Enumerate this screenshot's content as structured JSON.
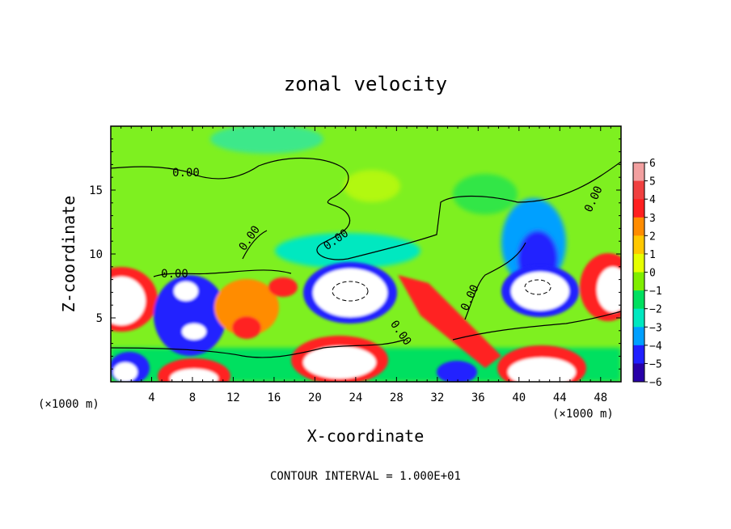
{
  "chart_data": {
    "type": "heatmap",
    "title": "zonal velocity",
    "xlabel": "X-coordinate",
    "ylabel": "Z-coordinate",
    "x_unit_left": "(×1000 m)",
    "x_unit_right": "(×1000 m)",
    "x_ticks": [
      "4",
      "8",
      "12",
      "16",
      "20",
      "24",
      "28",
      "32",
      "36",
      "40",
      "44",
      "48"
    ],
    "y_ticks": [
      "5",
      "10",
      "15"
    ],
    "xlim": [
      0,
      50
    ],
    "ylim": [
      0,
      20
    ],
    "colorbar_ticks": [
      "6",
      "5",
      "4",
      "3",
      "2",
      "1",
      "0",
      "−1",
      "−2",
      "−3",
      "−4",
      "−5",
      "−6"
    ],
    "colorbar_range": [
      -6,
      6
    ],
    "contour_label": "0.00",
    "footer": "CONTOUR INTERVAL = 1.000E+01",
    "colors": {
      "v6": "#f2a0a0",
      "v5": "#f04040",
      "v4": "#ff2020",
      "v3": "#ff8c00",
      "v2": "#ffc800",
      "v1": "#e6ff00",
      "v0": "#7fee00",
      "vm1": "#00e060",
      "vm2": "#00e8c0",
      "vm3": "#00a0ff",
      "vm4": "#2020ff",
      "vm5": "#2800a8",
      "vm6": "#7a00c8",
      "saturated": "#ffffff",
      "background": "#7ef020"
    },
    "features": [
      {
        "x": 2,
        "z": 6.5,
        "value": "positive",
        "note": "strong positive core left edge"
      },
      {
        "x": 9,
        "z": 4,
        "value": "negative",
        "note": "blue ring"
      },
      {
        "x": 13.5,
        "z": 5.5,
        "value": 4
      },
      {
        "x": 24,
        "z": 6.8,
        "value": "negative",
        "note": "white core with dashed contour"
      },
      {
        "x": 42,
        "z": 6.5,
        "value": "negative",
        "note": "white core with dashed contour"
      },
      {
        "x": 48.5,
        "z": 7.5,
        "value": "positive"
      },
      {
        "x": 23,
        "z": 2,
        "value": "positive"
      },
      {
        "x": 43,
        "z": 1,
        "value": "positive"
      }
    ]
  }
}
